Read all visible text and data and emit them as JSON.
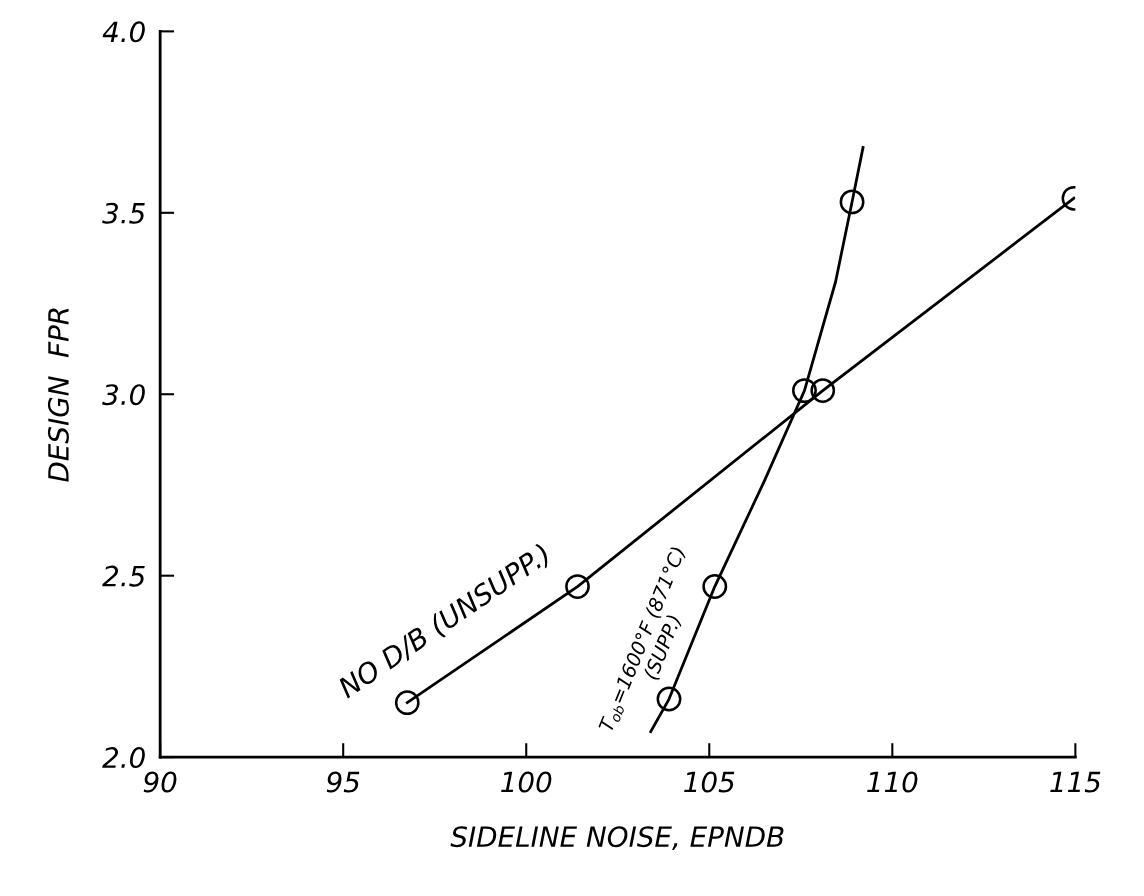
{
  "chart_data": {
    "type": "line",
    "xlabel": "SIDELINE NOISE, EPNDB",
    "ylabel": "DESIGN  FPR",
    "xlim": [
      90,
      115
    ],
    "xticks": [
      90,
      95,
      100,
      105,
      110,
      115
    ],
    "ylim": [
      2.0,
      4.0
    ],
    "yticks": [
      {
        "value": 2.0,
        "label": "2.0"
      },
      {
        "value": 2.5,
        "label": "2.5"
      },
      {
        "value": 3.0,
        "label": "3.0"
      },
      {
        "value": 3.5,
        "label": "3.5"
      },
      {
        "value": 4.0,
        "label": "4.0"
      }
    ],
    "grid": false,
    "legend": false,
    "series": [
      {
        "name": "NO D/B (UNSUPP.)",
        "marker": "circle",
        "color": "#000000",
        "x": [
          96.75,
          101.4,
          108.1,
          114.96
        ],
        "values": [
          2.15,
          2.47,
          3.01,
          3.54
        ]
      },
      {
        "name": "T$_{ob}$=1600°F (871°C)\n(SUPP.)",
        "type": "scatter",
        "marker": "circle",
        "color": "#000000",
        "x": [
          103.9,
          105.15,
          107.6,
          108.9
        ],
        "values": [
          2.16,
          2.47,
          3.01,
          3.53
        ]
      },
      {
        "type": "line",
        "marker": "none",
        "color": "#000000",
        "x": [
          103.4,
          103.9,
          105.15,
          106.5,
          107.6,
          108.45,
          108.9,
          109.2
        ],
        "values": [
          2.07,
          2.16,
          2.47,
          2.76,
          3.01,
          3.31,
          3.53,
          3.68
        ]
      }
    ]
  }
}
